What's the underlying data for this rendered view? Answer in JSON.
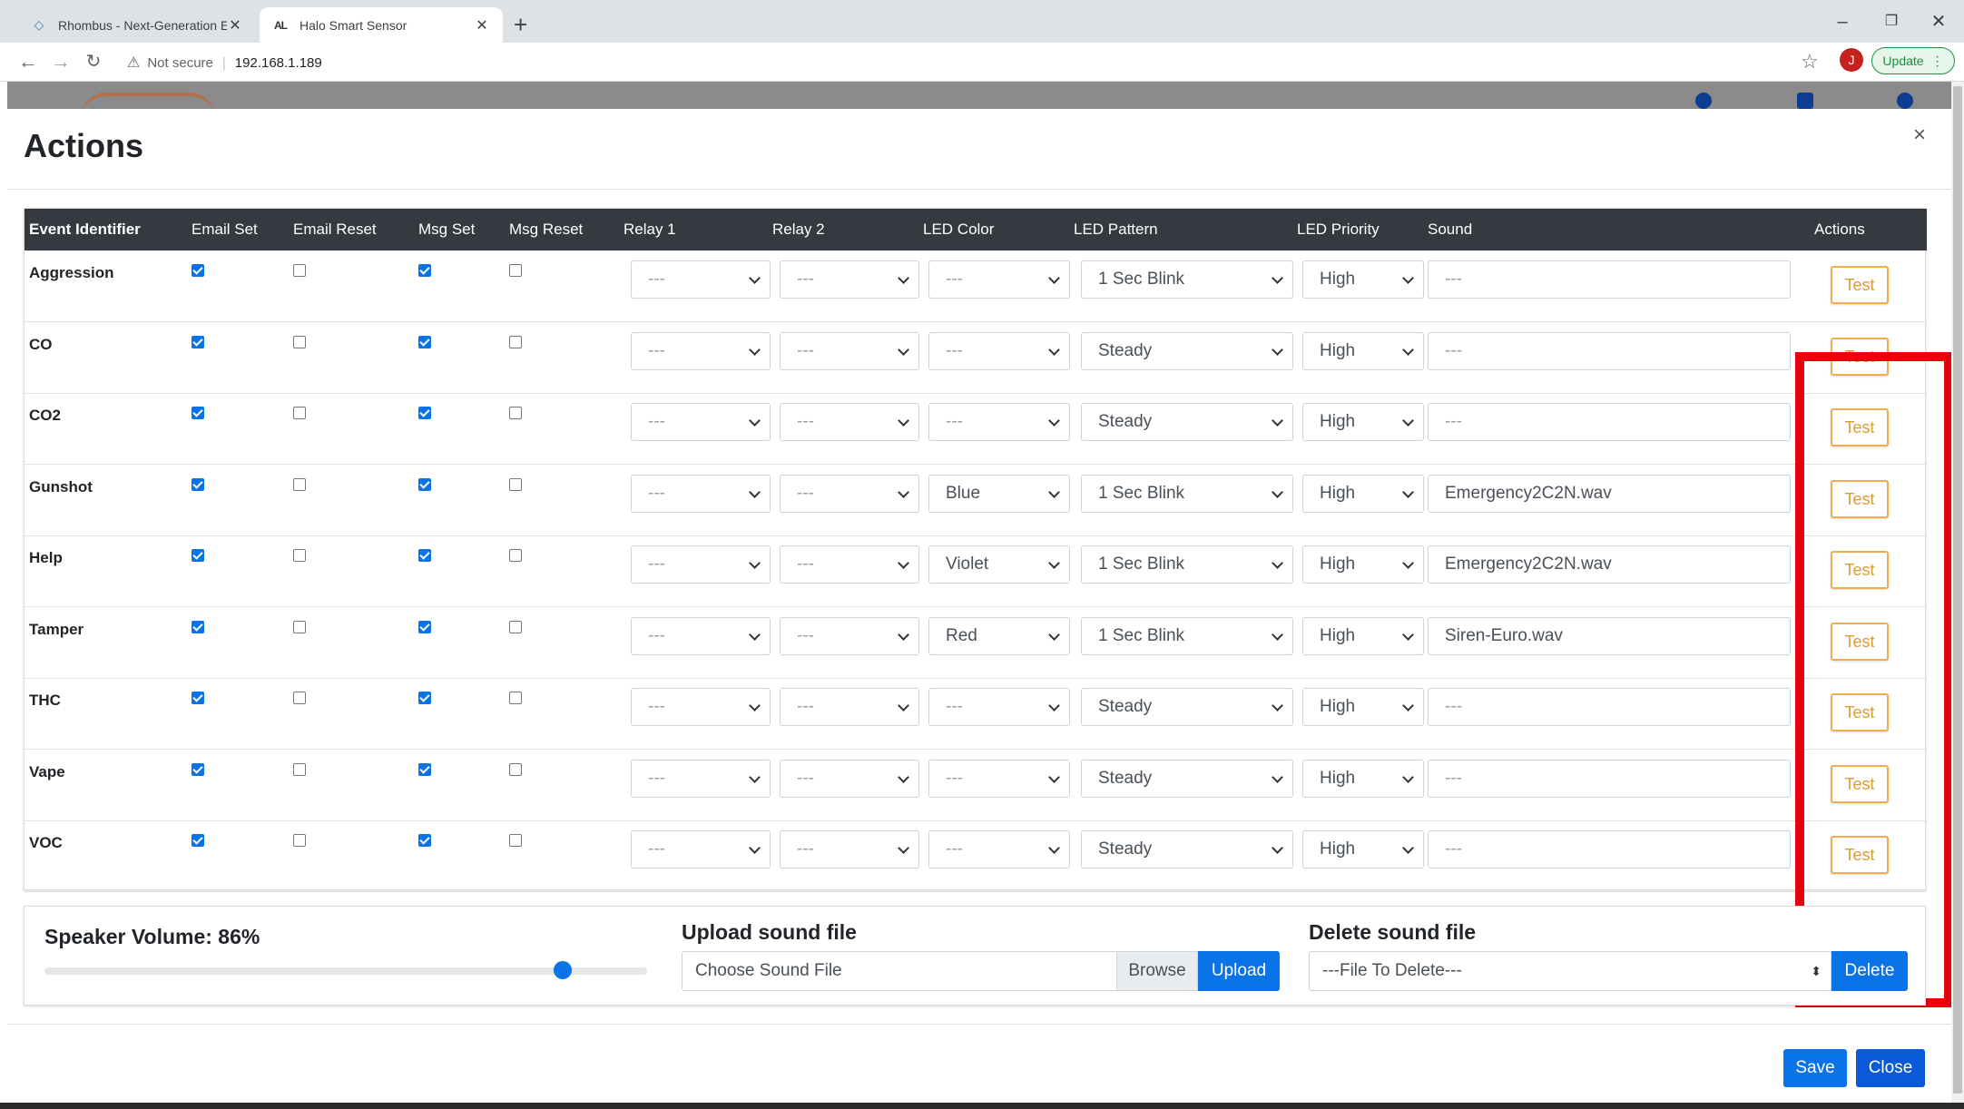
{
  "browser": {
    "tabs": [
      {
        "title": "Rhombus - Next-Generation Ente",
        "favicon": "rhombus-diamond-icon"
      },
      {
        "title": "Halo Smart Sensor",
        "favicon": "halo-logo-icon"
      }
    ],
    "address": {
      "security": "Not secure",
      "url": "192.168.1.189"
    },
    "avatar_letter": "J",
    "update_label": "Update"
  },
  "modal": {
    "title": "Actions",
    "close_glyph": "×",
    "columns": [
      "Event Identifier",
      "Email Set",
      "Email Reset",
      "Msg Set",
      "Msg Reset",
      "Relay 1",
      "Relay 2",
      "LED Color",
      "LED Pattern",
      "LED Priority",
      "Sound",
      "Actions"
    ],
    "rows": [
      {
        "event": "Aggression",
        "email_set": true,
        "email_reset": false,
        "msg_set": true,
        "msg_reset": false,
        "relay1": "---",
        "relay2": "---",
        "led_color": "---",
        "led_pattern": "1 Sec Blink",
        "led_priority": "High",
        "sound": "---",
        "action": "Test"
      },
      {
        "event": "CO",
        "email_set": true,
        "email_reset": false,
        "msg_set": true,
        "msg_reset": false,
        "relay1": "---",
        "relay2": "---",
        "led_color": "---",
        "led_pattern": "Steady",
        "led_priority": "High",
        "sound": "---",
        "action": "Test"
      },
      {
        "event": "CO2",
        "email_set": true,
        "email_reset": false,
        "msg_set": true,
        "msg_reset": false,
        "relay1": "---",
        "relay2": "---",
        "led_color": "---",
        "led_pattern": "Steady",
        "led_priority": "High",
        "sound": "---",
        "action": "Test"
      },
      {
        "event": "Gunshot",
        "email_set": true,
        "email_reset": false,
        "msg_set": true,
        "msg_reset": false,
        "relay1": "---",
        "relay2": "---",
        "led_color": "Blue",
        "led_pattern": "1 Sec Blink",
        "led_priority": "High",
        "sound": "Emergency2C2N.wav",
        "action": "Test"
      },
      {
        "event": "Help",
        "email_set": true,
        "email_reset": false,
        "msg_set": true,
        "msg_reset": false,
        "relay1": "---",
        "relay2": "---",
        "led_color": "Violet",
        "led_pattern": "1 Sec Blink",
        "led_priority": "High",
        "sound": "Emergency2C2N.wav",
        "action": "Test"
      },
      {
        "event": "Tamper",
        "email_set": true,
        "email_reset": false,
        "msg_set": true,
        "msg_reset": false,
        "relay1": "---",
        "relay2": "---",
        "led_color": "Red",
        "led_pattern": "1 Sec Blink",
        "led_priority": "High",
        "sound": "Siren-Euro.wav",
        "action": "Test"
      },
      {
        "event": "THC",
        "email_set": true,
        "email_reset": false,
        "msg_set": true,
        "msg_reset": false,
        "relay1": "---",
        "relay2": "---",
        "led_color": "---",
        "led_pattern": "Steady",
        "led_priority": "High",
        "sound": "---",
        "action": "Test"
      },
      {
        "event": "Vape",
        "email_set": true,
        "email_reset": false,
        "msg_set": true,
        "msg_reset": false,
        "relay1": "---",
        "relay2": "---",
        "led_color": "---",
        "led_pattern": "Steady",
        "led_priority": "High",
        "sound": "---",
        "action": "Test"
      },
      {
        "event": "VOC",
        "email_set": true,
        "email_reset": false,
        "msg_set": true,
        "msg_reset": false,
        "relay1": "---",
        "relay2": "---",
        "led_color": "---",
        "led_pattern": "Steady",
        "led_priority": "High",
        "sound": "---",
        "action": "Test"
      }
    ],
    "speaker": {
      "label": "Speaker Volume: 86%",
      "value": 86
    },
    "upload": {
      "label": "Upload sound file",
      "placeholder": "Choose Sound File",
      "browse": "Browse",
      "button": "Upload"
    },
    "delete": {
      "label": "Delete sound file",
      "selected": "---File To Delete---",
      "button": "Delete"
    },
    "footer": {
      "save": "Save",
      "close": "Close"
    }
  },
  "colors": {
    "accent": "#0a73e8",
    "header_bg": "#343a40",
    "test_border": "#f0ad4e",
    "highlight": "#e8000f"
  }
}
